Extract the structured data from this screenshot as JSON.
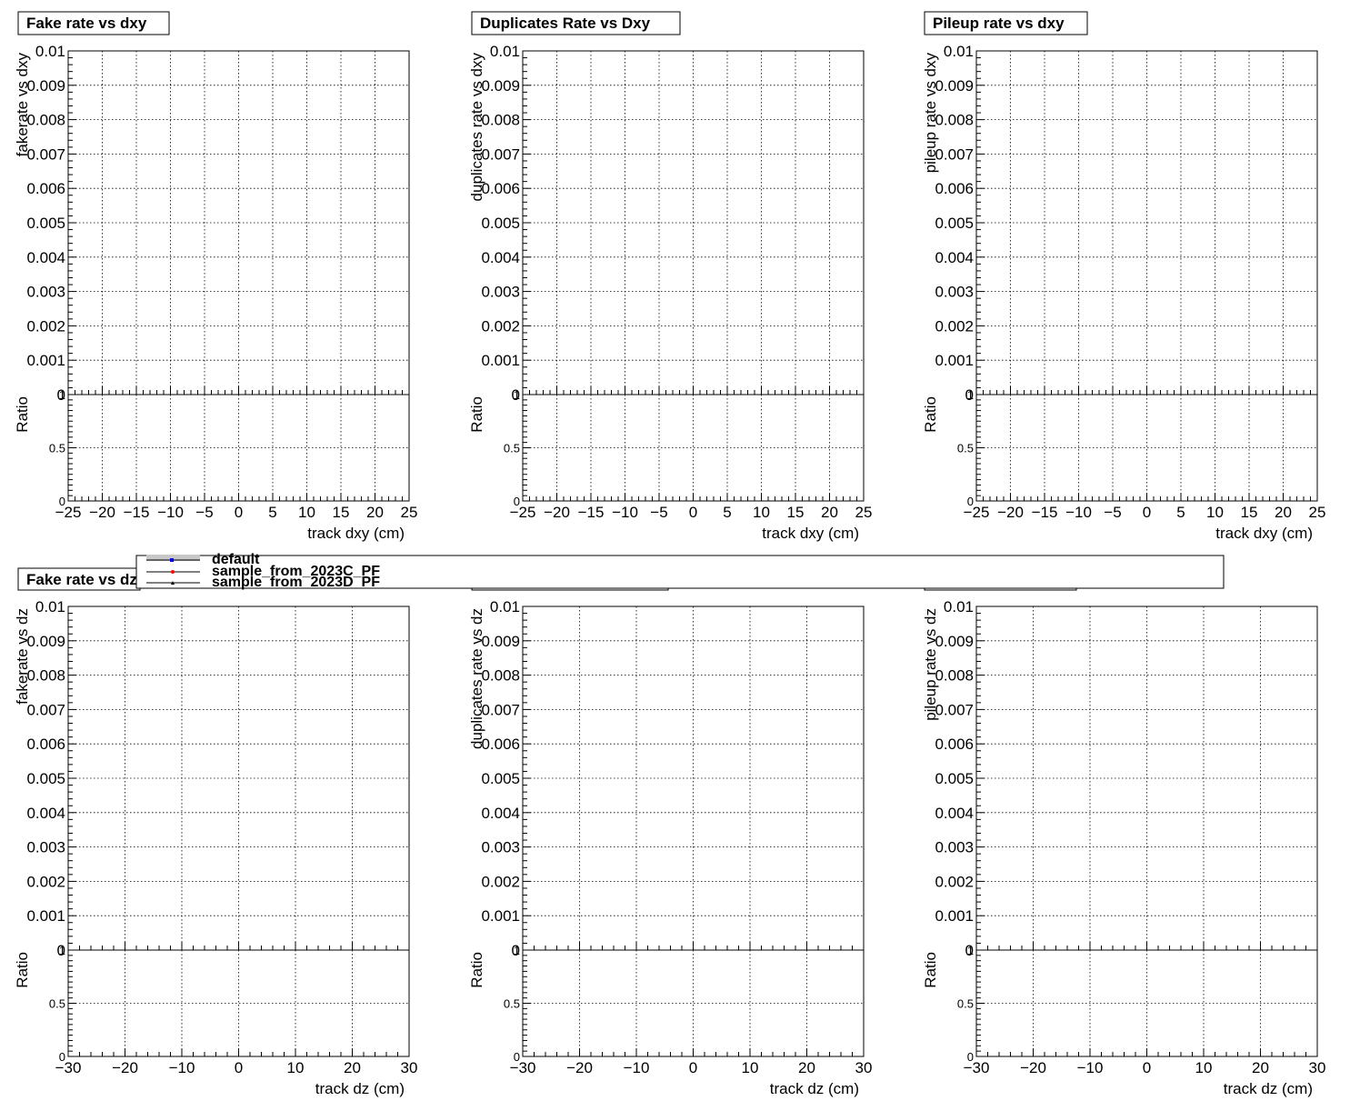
{
  "chart_data": [
    {
      "type": "scatter",
      "title": "Fake rate vs dxy",
      "xlabel": "track dxy (cm)",
      "ylabel": "fakerate vs dxy",
      "ratio_ylabel": "Ratio",
      "xlim": [
        -25,
        25
      ],
      "ylim": [
        0,
        0.01
      ],
      "ratio_ylim": [
        0,
        1
      ],
      "x_ticks": [
        -25,
        -20,
        -15,
        -10,
        -5,
        0,
        5,
        10,
        15,
        20,
        25
      ],
      "x_tick_labels": [
        "−25",
        "−20",
        "−15",
        "−10",
        "−5",
        "0",
        "5",
        "10",
        "15",
        "20",
        "25"
      ],
      "y_tick_labels": [
        "0",
        "0.001",
        "0.002",
        "0.003",
        "0.004",
        "0.005",
        "0.006",
        "0.007",
        "0.008",
        "0.009",
        "0.01"
      ],
      "ratio_tick_labels": [
        "0",
        "0.5",
        "1"
      ],
      "grid": true,
      "series": []
    },
    {
      "type": "scatter",
      "title": "Duplicates Rate vs Dxy",
      "xlabel": "track dxy (cm)",
      "ylabel": "duplicates rate vs dxy",
      "ratio_ylabel": "Ratio",
      "xlim": [
        -25,
        25
      ],
      "ylim": [
        0,
        0.01
      ],
      "ratio_ylim": [
        0,
        1
      ],
      "x_ticks": [
        -25,
        -20,
        -15,
        -10,
        -5,
        0,
        5,
        10,
        15,
        20,
        25
      ],
      "x_tick_labels": [
        "−25",
        "−20",
        "−15",
        "−10",
        "−5",
        "0",
        "5",
        "10",
        "15",
        "20",
        "25"
      ],
      "y_tick_labels": [
        "0",
        "0.001",
        "0.002",
        "0.003",
        "0.004",
        "0.005",
        "0.006",
        "0.007",
        "0.008",
        "0.009",
        "0.01"
      ],
      "ratio_tick_labels": [
        "0",
        "0.5",
        "1"
      ],
      "grid": true,
      "series": []
    },
    {
      "type": "scatter",
      "title": "Pileup rate vs dxy",
      "xlabel": "track dxy (cm)",
      "ylabel": "pileup rate vs dxy",
      "ratio_ylabel": "Ratio",
      "xlim": [
        -25,
        25
      ],
      "ylim": [
        0,
        0.01
      ],
      "ratio_ylim": [
        0,
        1
      ],
      "x_ticks": [
        -25,
        -20,
        -15,
        -10,
        -5,
        0,
        5,
        10,
        15,
        20,
        25
      ],
      "x_tick_labels": [
        "−25",
        "−20",
        "−15",
        "−10",
        "−5",
        "0",
        "5",
        "10",
        "15",
        "20",
        "25"
      ],
      "y_tick_labels": [
        "0",
        "0.001",
        "0.002",
        "0.003",
        "0.004",
        "0.005",
        "0.006",
        "0.007",
        "0.008",
        "0.009",
        "0.01"
      ],
      "ratio_tick_labels": [
        "0",
        "0.5",
        "1"
      ],
      "grid": true,
      "series": []
    },
    {
      "type": "scatter",
      "title": "Fake rate vs dz",
      "xlabel": "track dz (cm)",
      "ylabel": "fakerate vs dz",
      "ratio_ylabel": "Ratio",
      "xlim": [
        -30,
        30
      ],
      "ylim": [
        0,
        0.01
      ],
      "ratio_ylim": [
        0,
        1
      ],
      "x_ticks": [
        -30,
        -20,
        -10,
        0,
        10,
        20,
        30
      ],
      "x_tick_labels": [
        "−30",
        "−20",
        "−10",
        "0",
        "10",
        "20",
        "30"
      ],
      "y_tick_labels": [
        "0",
        "0.001",
        "0.002",
        "0.003",
        "0.004",
        "0.005",
        "0.006",
        "0.007",
        "0.008",
        "0.009",
        "0.01"
      ],
      "ratio_tick_labels": [
        "0",
        "0.5",
        "1"
      ],
      "grid": true,
      "series": []
    },
    {
      "type": "scatter",
      "title": "",
      "xlabel": "track dz (cm)",
      "ylabel": "duplicates rate vs dz",
      "ratio_ylabel": "Ratio",
      "xlim": [
        -30,
        30
      ],
      "ylim": [
        0,
        0.01
      ],
      "ratio_ylim": [
        0,
        1
      ],
      "x_ticks": [
        -30,
        -20,
        -10,
        0,
        10,
        20,
        30
      ],
      "x_tick_labels": [
        "−30",
        "−20",
        "−10",
        "0",
        "10",
        "20",
        "30"
      ],
      "y_tick_labels": [
        "0",
        "0.001",
        "0.002",
        "0.003",
        "0.004",
        "0.005",
        "0.006",
        "0.007",
        "0.008",
        "0.009",
        "0.01"
      ],
      "ratio_tick_labels": [
        "0",
        "0.5",
        "1"
      ],
      "grid": true,
      "series": []
    },
    {
      "type": "scatter",
      "title": "",
      "xlabel": "track dz (cm)",
      "ylabel": "pileup rate vs dz",
      "ratio_ylabel": "Ratio",
      "xlim": [
        -30,
        30
      ],
      "ylim": [
        0,
        0.01
      ],
      "ratio_ylim": [
        0,
        1
      ],
      "x_ticks": [
        -30,
        -20,
        -10,
        0,
        10,
        20,
        30
      ],
      "x_tick_labels": [
        "−30",
        "−20",
        "−10",
        "0",
        "10",
        "20",
        "30"
      ],
      "y_tick_labels": [
        "0",
        "0.001",
        "0.002",
        "0.003",
        "0.004",
        "0.005",
        "0.006",
        "0.007",
        "0.008",
        "0.009",
        "0.01"
      ],
      "ratio_tick_labels": [
        "0",
        "0.5",
        "1"
      ],
      "grid": true,
      "series": []
    }
  ],
  "legend": {
    "entries": [
      {
        "label": "default",
        "color": "#0000ff",
        "marker": "square"
      },
      {
        "label": "sample_from_2023C_PF",
        "color": "#ff0000",
        "marker": "circle"
      },
      {
        "label": "sample_from_2023D_PF",
        "color": "#000000",
        "marker": "triangle"
      }
    ]
  }
}
